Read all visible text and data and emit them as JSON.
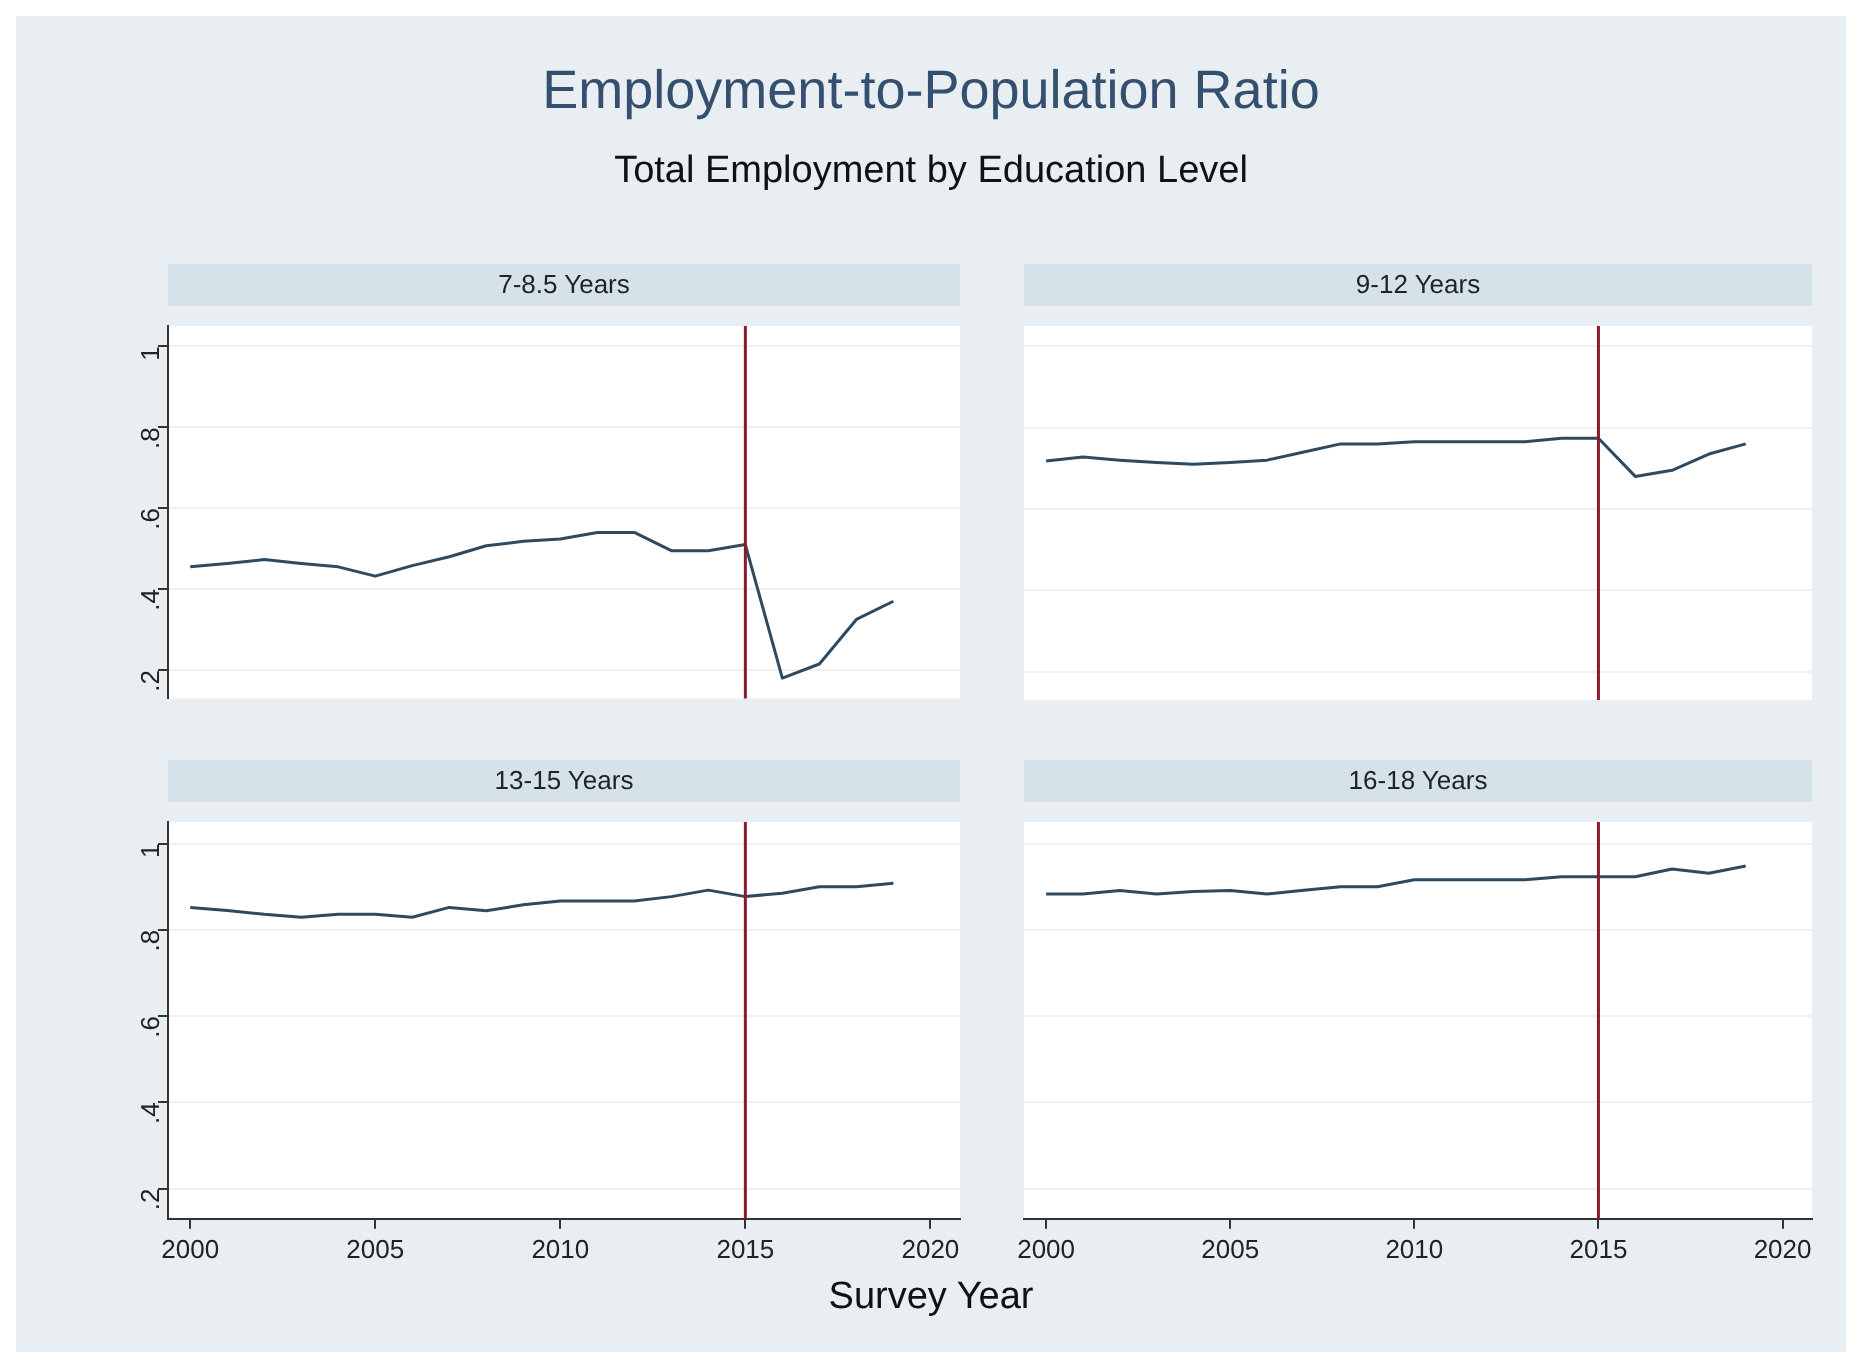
{
  "chart_data": [
    {
      "type": "line",
      "title": "7-8.5 Years",
      "x": [
        2000,
        2001,
        2002,
        2003,
        2004,
        2005,
        2006,
        2007,
        2008,
        2009,
        2010,
        2011,
        2012,
        2013,
        2014,
        2015,
        2016,
        2017,
        2018,
        2019
      ],
      "series": [
        {
          "color": "#2f4a5f",
          "values": [
            0.455,
            0.463,
            0.473,
            0.463,
            0.455,
            0.432,
            0.458,
            0.48,
            0.507,
            0.518,
            0.524,
            0.54,
            0.54,
            0.495,
            0.495,
            0.51,
            0.18,
            0.215,
            0.325,
            0.37
          ]
        }
      ],
      "xlim": [
        1999.4,
        2020.8
      ],
      "ylim": [
        0.13,
        1.05
      ],
      "yticks": [
        {
          "value": 0.2,
          "label": ".2"
        },
        {
          "value": 0.4,
          "label": ".4"
        },
        {
          "value": 0.6,
          "label": ".6"
        },
        {
          "value": 0.8,
          "label": ".8"
        },
        1
      ],
      "ref_lines": [
        {
          "axis": "x",
          "value": 2015,
          "color": "#8b1a2b"
        }
      ],
      "grid": "y",
      "legend": false,
      "marker": "none",
      "line_style": "solid",
      "tick_labels": "y"
    },
    {
      "type": "line",
      "title": "9-12 Years",
      "x": [
        2000,
        2001,
        2002,
        2003,
        2004,
        2005,
        2006,
        2007,
        2008,
        2009,
        2010,
        2011,
        2012,
        2013,
        2014,
        2015,
        2016,
        2017,
        2018,
        2019
      ],
      "series": [
        {
          "color": "#2f4a5f",
          "values": [
            0.718,
            0.728,
            0.72,
            0.714,
            0.71,
            0.714,
            0.72,
            0.74,
            0.76,
            0.76,
            0.765,
            0.765,
            0.765,
            0.765,
            0.774,
            0.774,
            0.68,
            0.695,
            0.735,
            0.76
          ]
        }
      ],
      "xlim": [
        1999.4,
        2020.8
      ],
      "ylim": [
        0.13,
        1.05
      ],
      "yticks": [
        {
          "value": 0.2,
          "label": null
        },
        {
          "value": 0.4,
          "label": null
        },
        {
          "value": 0.6,
          "label": null
        },
        {
          "value": 0.8,
          "label": null
        },
        {
          "value": 1,
          "label": null
        }
      ],
      "ref_lines": [
        {
          "axis": "x",
          "value": 2015,
          "color": "#8b1a2b"
        }
      ],
      "grid": "y",
      "legend": false,
      "marker": "none",
      "line_style": "solid",
      "tick_labels": false
    },
    {
      "type": "line",
      "title": "13-15 Years",
      "x": [
        2000,
        2001,
        2002,
        2003,
        2004,
        2005,
        2006,
        2007,
        2008,
        2009,
        2010,
        2011,
        2012,
        2013,
        2014,
        2015,
        2016,
        2017,
        2018,
        2019
      ],
      "series": [
        {
          "color": "#2f4a5f",
          "values": [
            0.852,
            0.845,
            0.836,
            0.829,
            0.836,
            0.836,
            0.829,
            0.852,
            0.844,
            0.858,
            0.867,
            0.867,
            0.867,
            0.877,
            0.892,
            0.877,
            0.885,
            0.9,
            0.9,
            0.908
          ]
        }
      ],
      "xlim": [
        1999.4,
        2020.8
      ],
      "xticks": [
        2000,
        2005,
        2010,
        2015,
        2020
      ],
      "ylim": [
        0.13,
        1.05
      ],
      "yticks": [
        {
          "value": 0.2,
          "label": ".2"
        },
        {
          "value": 0.4,
          "label": ".4"
        },
        {
          "value": 0.6,
          "label": ".6"
        },
        {
          "value": 0.8,
          "label": ".8"
        },
        1
      ],
      "ref_lines": [
        {
          "axis": "x",
          "value": 2015,
          "color": "#8b1a2b"
        }
      ],
      "grid": "y",
      "legend": false,
      "marker": "none",
      "line_style": "solid"
    },
    {
      "type": "line",
      "title": "16-18 Years",
      "x": [
        2000,
        2001,
        2002,
        2003,
        2004,
        2005,
        2006,
        2007,
        2008,
        2009,
        2010,
        2011,
        2012,
        2013,
        2014,
        2015,
        2016,
        2017,
        2018,
        2019
      ],
      "series": [
        {
          "color": "#2f4a5f",
          "values": [
            0.883,
            0.883,
            0.891,
            0.883,
            0.889,
            0.891,
            0.883,
            0.892,
            0.9,
            0.9,
            0.916,
            0.916,
            0.916,
            0.916,
            0.923,
            0.923,
            0.923,
            0.941,
            0.931,
            0.948
          ]
        }
      ],
      "xlim": [
        1999.4,
        2020.8
      ],
      "xticks": [
        2000,
        2005,
        2010,
        2015,
        2020
      ],
      "ylim": [
        0.13,
        1.05
      ],
      "yticks": [
        {
          "value": 0.2,
          "label": null
        },
        {
          "value": 0.4,
          "label": null
        },
        {
          "value": 0.6,
          "label": null
        },
        {
          "value": 0.8,
          "label": null
        },
        {
          "value": 1,
          "label": null
        }
      ],
      "ref_lines": [
        {
          "axis": "x",
          "value": 2015,
          "color": "#8b1a2b"
        }
      ],
      "grid": "y",
      "legend": false,
      "marker": "none",
      "line_style": "solid",
      "tick_labels": "x"
    },
    {
      "type": "other",
      "title": "Employment-to-Population Ratio",
      "subtitle": "Total Employment by Education Level",
      "xlabel": "Survey Year"
    }
  ]
}
